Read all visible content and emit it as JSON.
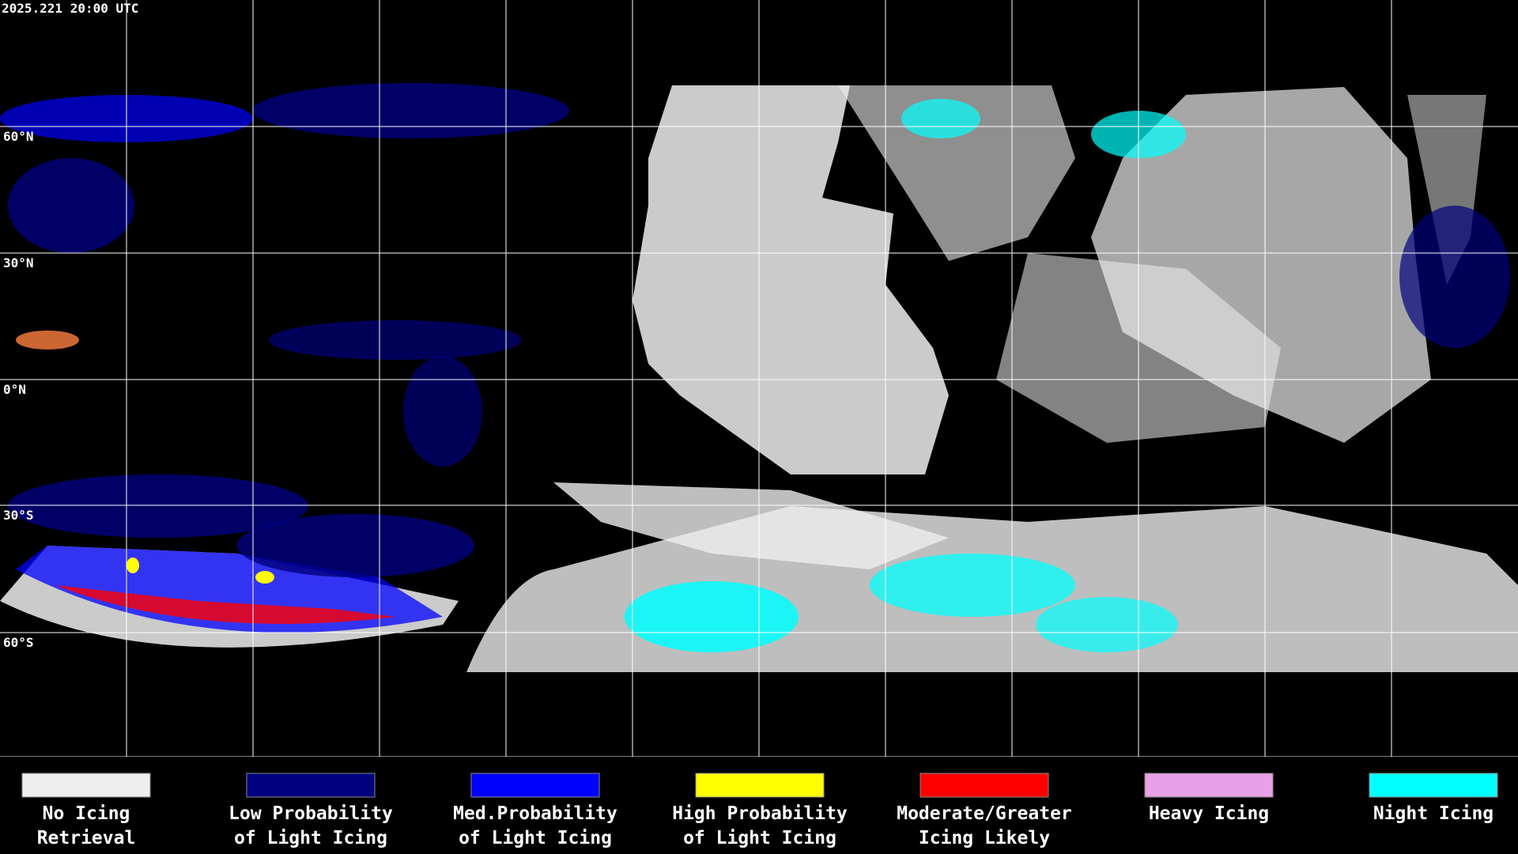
{
  "header": {
    "timestamp": "2025.221 20:00 UTC"
  },
  "map": {
    "latitude_labels": [
      "60°N",
      "30°N",
      "0°N",
      "30°S",
      "60°S"
    ]
  },
  "legend": {
    "items": [
      {
        "color": "#eeeeee",
        "lines": [
          "No Icing",
          "Retrieval"
        ]
      },
      {
        "color": "#00007f",
        "lines": [
          "Low Probability",
          "of Light Icing"
        ]
      },
      {
        "color": "#0000ff",
        "lines": [
          "Med.Probability",
          "of Light Icing"
        ]
      },
      {
        "color": "#ffff00",
        "lines": [
          "High Probability",
          "of Light Icing"
        ]
      },
      {
        "color": "#ff0000",
        "lines": [
          "Moderate/Greater",
          "Icing Likely"
        ]
      },
      {
        "color": "#e8a0e8",
        "lines": [
          "Heavy Icing"
        ]
      },
      {
        "color": "#00ffff",
        "lines": [
          "Night Icing"
        ]
      }
    ]
  }
}
